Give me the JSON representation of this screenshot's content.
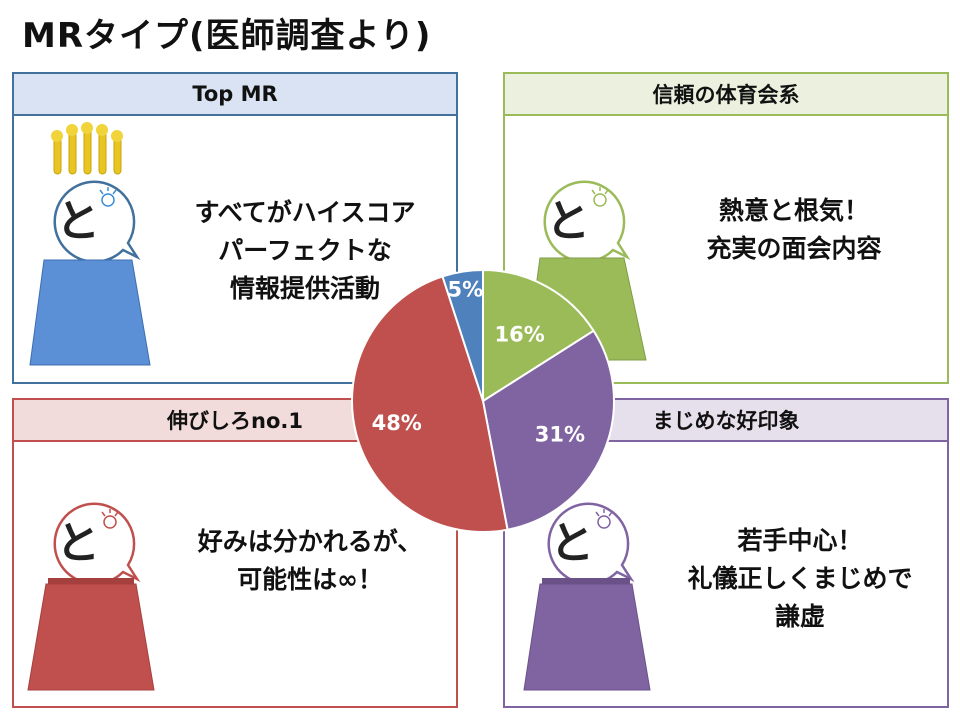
{
  "title": "MRタイプ(医師調査より)",
  "panels": {
    "top": {
      "header": "Top MR",
      "text": "すべてがハイスコア\nパーフェクトな\n情報提供活動",
      "color": "#4f81bd"
    },
    "taiiku": {
      "header": "信頼の体育会系",
      "text": "熱意と根気！\n充実の面会内容",
      "color": "#9bbb59"
    },
    "nobi": {
      "header": "伸びしろno.1",
      "text": "好みは分かれるが、\n可能性は∞！",
      "color": "#c0504d"
    },
    "majime": {
      "header": "まじめな好印象",
      "text": "若手中心！\n礼儀正しくまじめで\n謙虚",
      "color": "#8064a2"
    }
  },
  "mascot": {
    "glyph": "と"
  },
  "chart_data": {
    "type": "pie",
    "title": "",
    "series": [
      {
        "value": 16,
        "label": "16%",
        "color": "#9bbb59"
      },
      {
        "value": 31,
        "label": "31%",
        "color": "#8064a2"
      },
      {
        "value": 48,
        "label": "48%",
        "color": "#c0504d"
      },
      {
        "value": 5,
        "label": "5%",
        "color": "#4f81bd"
      }
    ],
    "start_angle": "12 o'clock",
    "direction": "clockwise",
    "legend": "none"
  }
}
